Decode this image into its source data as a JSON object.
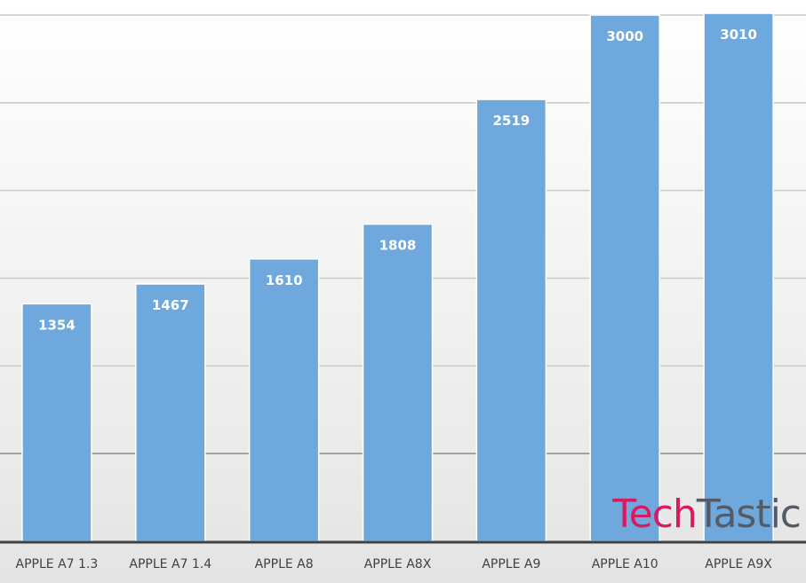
{
  "chart_data": {
    "type": "bar",
    "categories": [
      "APPLE A7 1.3",
      "APPLE A7 1.4",
      "APPLE A8",
      "APPLE A8X",
      "APPLE A9",
      "APPLE A10",
      "APPLE A9X"
    ],
    "values": [
      1354,
      1467,
      1610,
      1808,
      2519,
      3000,
      3010
    ],
    "title": "",
    "xlabel": "",
    "ylabel": "",
    "ylim": [
      0,
      3000
    ],
    "gridlines": [
      500,
      1000,
      1500,
      2000,
      2500,
      3000
    ],
    "y_tick_labels_visible": false,
    "data_labels": true,
    "legend": "none",
    "grid": true,
    "colors": {
      "bar": "#6fa8dc",
      "bar_edge": "#ffffff",
      "value_label": "#ffffff",
      "grid": "#c8c8c8",
      "grid_dark": "#8c8c8c",
      "axis": "#404040",
      "category_label": "#404040"
    }
  },
  "watermark": {
    "part1": "Tech",
    "part2": "Tastic",
    "color1": "#d81b60",
    "color2": "#555b66"
  }
}
